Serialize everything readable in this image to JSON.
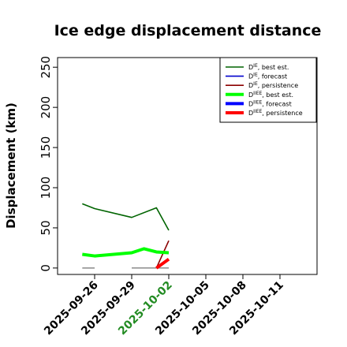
{
  "chart_data": {
    "type": "line",
    "title": "Ice edge displacement distance",
    "xlabel": "",
    "ylabel": "Displacement (km)",
    "ylim": [
      -8,
      262
    ],
    "yticks": [
      0,
      50,
      100,
      150,
      200,
      250
    ],
    "xlim": [
      "2025-09-23",
      "2025-10-14"
    ],
    "xticks": [
      "2025-09-26",
      "2025-09-29",
      "2025-10-02",
      "2025-10-05",
      "2025-10-08",
      "2025-10-11"
    ],
    "xtick_colors": [
      "#000000",
      "#000000",
      "#228b22",
      "#000000",
      "#000000",
      "#000000"
    ],
    "grid": false,
    "legend_position": "top-right",
    "series": [
      {
        "name": "D^IE, best est.",
        "label_main": "D",
        "label_sup": "IE",
        "label_rest": ", best est.",
        "color": "#006400",
        "width": 1.6,
        "points": [
          [
            "2025-09-25",
            80
          ],
          [
            "2025-09-26",
            74
          ],
          [
            "2025-09-29",
            63
          ],
          [
            "2025-10-01",
            75
          ],
          [
            "2025-10-02",
            47
          ]
        ]
      },
      {
        "name": "D^IE, forecast",
        "label_main": "D",
        "label_sup": "IE",
        "label_rest": ", forecast",
        "color": "#0000cd",
        "width": 1.6,
        "points": []
      },
      {
        "name": "D^IE, persistence",
        "label_main": "D",
        "label_sup": "IE",
        "label_rest": ", persistence",
        "color": "#8b0000",
        "width": 1.6,
        "points": [
          [
            "2025-10-01",
            0
          ],
          [
            "2025-10-02",
            34
          ]
        ]
      },
      {
        "name": "D^IIEE, best est.",
        "label_main": "D",
        "label_sup": "IIEE",
        "label_rest": ", best est.",
        "color": "#00ff00",
        "width": 4,
        "points": [
          [
            "2025-09-25",
            17
          ],
          [
            "2025-09-26",
            15
          ],
          [
            "2025-09-29",
            19
          ],
          [
            "2025-09-30",
            24
          ],
          [
            "2025-10-01",
            20
          ],
          [
            "2025-10-02",
            19
          ]
        ]
      },
      {
        "name": "D^IIEE, forecast",
        "label_main": "D",
        "label_sup": "IIEE",
        "label_rest": ", forecast",
        "color": "#0000ff",
        "width": 4,
        "points": []
      },
      {
        "name": "D^IIEE, persistence",
        "label_main": "D",
        "label_sup": "IIEE",
        "label_rest": ", persistence",
        "color": "#ff0000",
        "width": 4,
        "points": [
          [
            "2025-10-01",
            0
          ],
          [
            "2025-10-02",
            11
          ]
        ]
      }
    ],
    "zero_segments": [
      {
        "color": "#808080",
        "from": "2025-09-25",
        "to": "2025-09-26",
        "value": 0
      },
      {
        "color": "#808080",
        "from": "2025-09-29",
        "to": "2025-10-02",
        "value": 0
      }
    ]
  }
}
